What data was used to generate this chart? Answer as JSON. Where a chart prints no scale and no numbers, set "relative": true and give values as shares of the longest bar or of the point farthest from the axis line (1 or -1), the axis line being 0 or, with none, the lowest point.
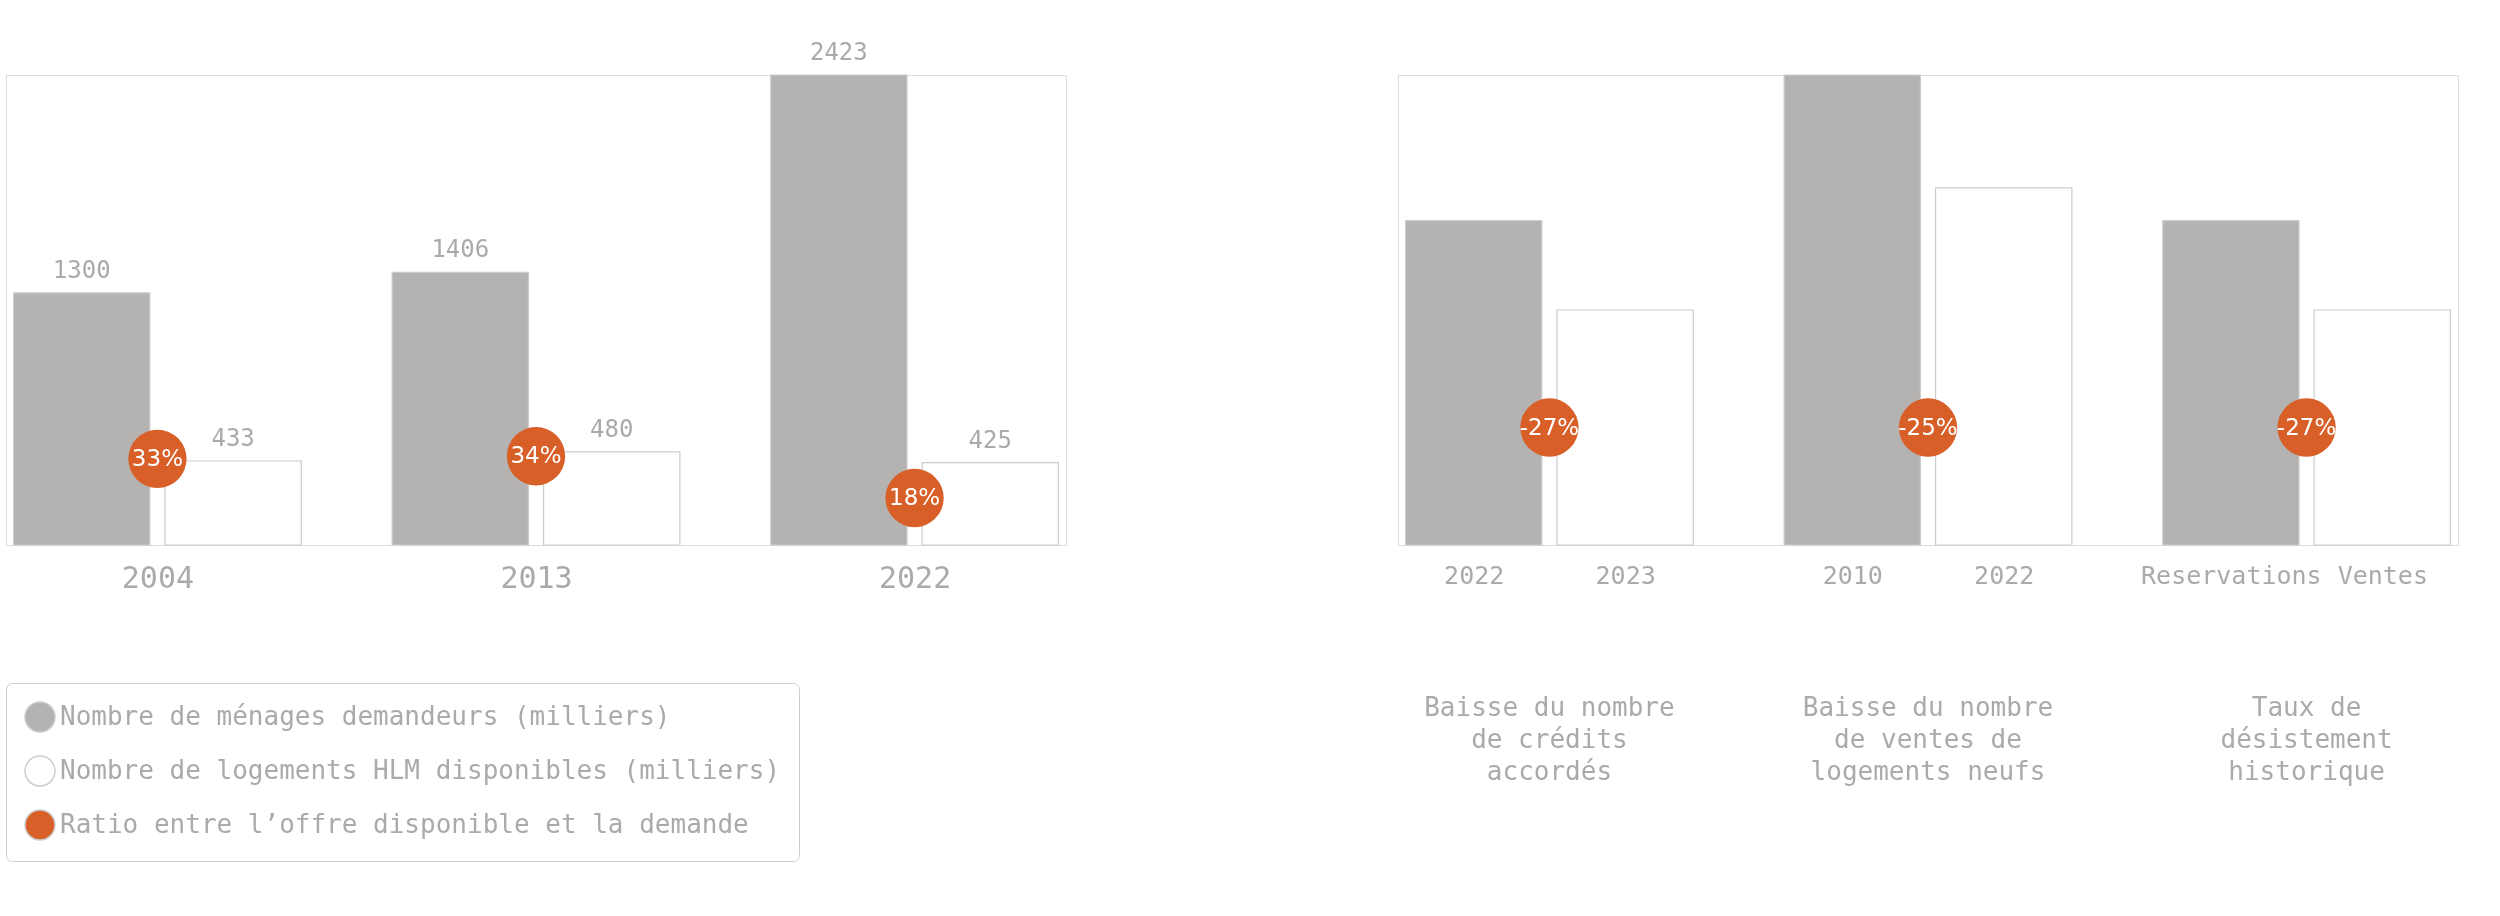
{
  "chart_data": [
    {
      "type": "bar",
      "categories": [
        "2004",
        "2013",
        "2022"
      ],
      "data_labels": true,
      "legend": "bottom left",
      "series": [
        {
          "name": "Nombre de ménages demandeurs (milliers)",
          "color": "#b4b3b2",
          "values": [
            1300,
            1406,
            2423
          ]
        },
        {
          "name": "Nombre de logements HLM disponibles (milliers)",
          "color": "#ffffff",
          "values": [
            433,
            480,
            425
          ]
        },
        {
          "name": "Ratio entre l’offre disponible et la demande",
          "type": "scatter",
          "axis": "y2",
          "color": "#d95f28",
          "values": [
            33,
            34,
            18
          ],
          "value_labels": [
            "33%",
            "34%",
            "18%"
          ]
        }
      ],
      "y2lim": [
        0,
        180
      ]
    },
    {
      "type": "bar",
      "relative": true,
      "categories": [
        "2022",
        "2023",
        "2010",
        "2022",
        "Reservations",
        "Ventes"
      ],
      "annotations": [
        "Baisse du nombre de crédits accordés",
        "Baisse du nombre de ventes de logements neufs",
        "Taux de désistement historique",
        "-27%",
        "-25%",
        "-27%"
      ],
      "series": [
        {
          "values": [
            0.69,
            0.5,
            1,
            0.76,
            0.69,
            0.5
          ],
          "colors": [
            "#b4b3b2",
            "#ffffff",
            "#b4b3b2",
            "#ffffff",
            "#b4b3b2",
            "#ffffff"
          ]
        }
      ]
    }
  ]
}
